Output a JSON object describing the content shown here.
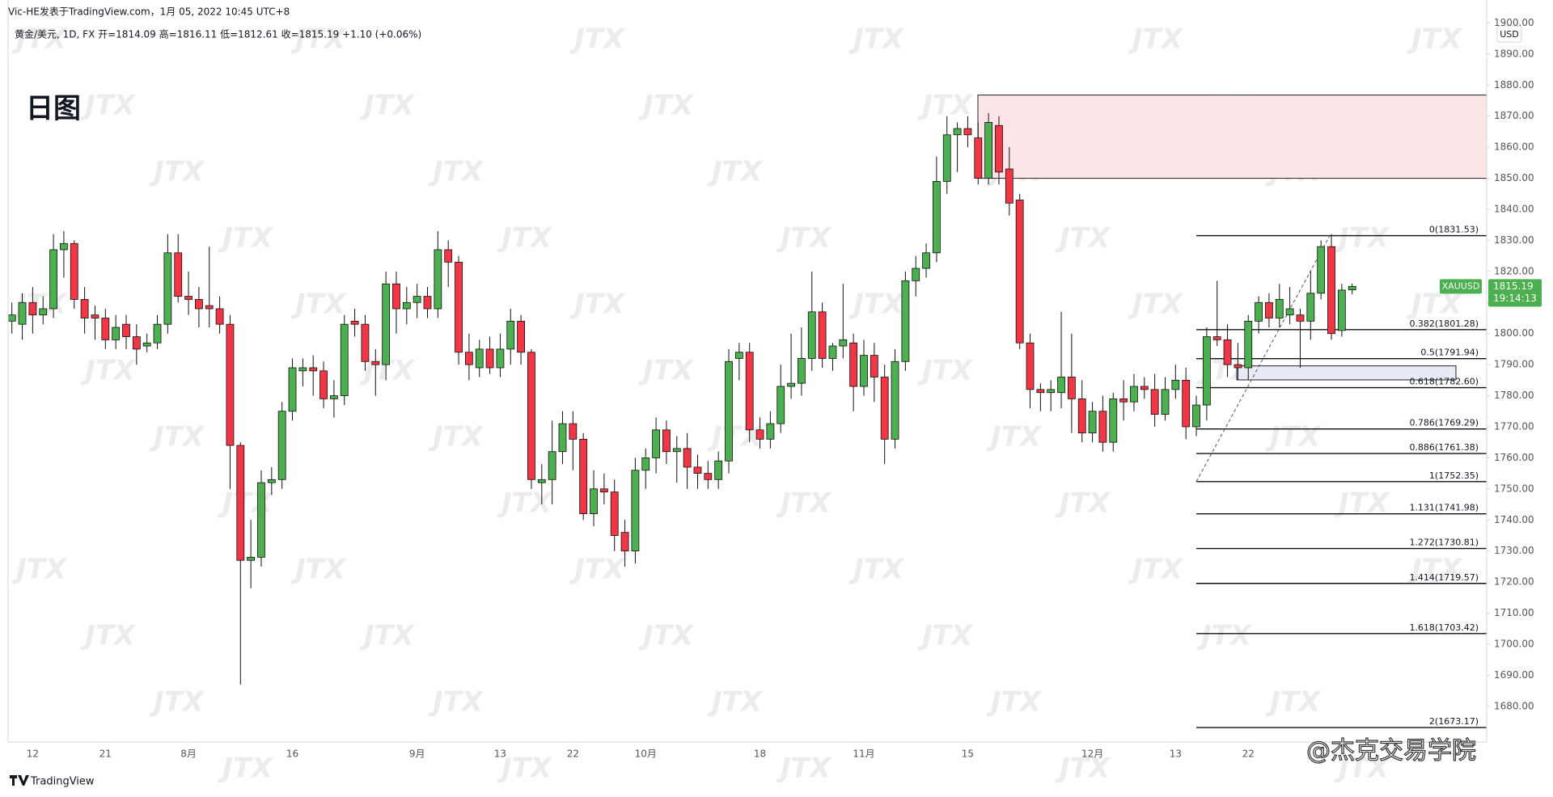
{
  "header": {
    "author_line": "Vic-HE发表于TradingView.com，1月 05, 2022 10:45 UTC+8",
    "symbol_line": "黄金/美元, 1D, FX  开=1814.09  高=1816.11  低=1812.61  收=1815.19  +1.10 (+0.06%)"
  },
  "chart_data": {
    "type": "candlestick",
    "title": "日图",
    "categories": [
      null,
      null,
      "12",
      null,
      null,
      null,
      null,
      null,
      null,
      "21",
      null,
      null,
      null,
      null,
      null,
      null,
      null,
      "8月",
      null,
      null,
      null,
      null,
      null,
      null,
      null,
      null,
      null,
      "16",
      null,
      null,
      null,
      null,
      null,
      null,
      null,
      null,
      null,
      null,
      null,
      "9月",
      null,
      null,
      null,
      null,
      null,
      null,
      null,
      "13",
      null,
      null,
      null,
      null,
      null,
      null,
      "22",
      null,
      null,
      null,
      null,
      null,
      null,
      "10月",
      null,
      null,
      null,
      null,
      null,
      null,
      null,
      null,
      null,
      null,
      "18",
      null,
      null,
      null,
      null,
      null,
      null,
      null,
      null,
      null,
      "11月",
      null,
      null,
      null,
      null,
      null,
      null,
      null,
      null,
      null,
      "15",
      null,
      null,
      null,
      null,
      null,
      null,
      null,
      null,
      null,
      null,
      null,
      "12月",
      null,
      null,
      null,
      null,
      null,
      null,
      null,
      "13",
      null,
      null,
      null,
      null,
      null,
      null,
      "22",
      null,
      null,
      null,
      null,
      null,
      null,
      null,
      null,
      null,
      null
    ],
    "open": [
      1804,
      1803,
      1810,
      1806,
      1808,
      1827,
      1829,
      1811,
      1806,
      1805,
      1798,
      1803,
      1799,
      1796,
      1797,
      1803,
      1826,
      1812,
      1811,
      1809,
      1808,
      1803,
      1764,
      1727,
      1728,
      1752,
      1753,
      1775,
      1788,
      1789,
      1788,
      1779,
      1780,
      1804,
      1803,
      1791,
      1790,
      1816,
      1808,
      1810,
      1812,
      1808,
      1827,
      1823,
      1794,
      1789,
      1795,
      1789,
      1795,
      1804,
      1794,
      1752,
      1753,
      1762,
      1771,
      1766,
      1742,
      1750,
      1749,
      1736,
      1730,
      1756,
      1760,
      1769,
      1762,
      1763,
      1757,
      1755,
      1753,
      1759,
      1792,
      1794,
      1769,
      1766,
      1771,
      1783,
      1784,
      1792,
      1807,
      1792,
      1796,
      1797,
      1783,
      1793,
      1786,
      1766,
      1791,
      1817,
      1821,
      1826,
      1849,
      1864,
      1866,
      1863,
      1850,
      1867,
      1853,
      1843,
      1797,
      1782,
      1781,
      1781,
      1786,
      1779,
      1768,
      1775,
      1765,
      1779,
      1778,
      1783,
      1782,
      1774,
      1782,
      1785,
      1770,
      1777,
      1799,
      1798,
      1790,
      1789,
      1804,
      1810,
      1805,
      1806,
      1806,
      1804,
      1813,
      1828,
      1801,
      1814.09
    ],
    "high": [
      1810,
      1813,
      1815,
      1812,
      1832,
      1833,
      1830,
      1815,
      1809,
      1808,
      1806,
      1806,
      1803,
      1800,
      1806,
      1832,
      1832,
      1820,
      1815,
      1828,
      1812,
      1806,
      1765,
      1740,
      1756,
      1757,
      1778,
      1792,
      1792,
      1793,
      1791,
      1785,
      1806,
      1808,
      1806,
      1795,
      1820,
      1820,
      1815,
      1816,
      1815,
      1833,
      1830,
      1825,
      1800,
      1798,
      1799,
      1800,
      1808,
      1806,
      1795,
      1758,
      1772,
      1775,
      1775,
      1768,
      1756,
      1755,
      1753,
      1740,
      1760,
      1763,
      1773,
      1772,
      1767,
      1768,
      1761,
      1759,
      1762,
      1795,
      1797,
      1797,
      1773,
      1775,
      1790,
      1800,
      1802,
      1820,
      1810,
      1797,
      1816,
      1800,
      1798,
      1797,
      1790,
      1795,
      1820,
      1825,
      1829,
      1857,
      1870,
      1868,
      1870,
      1868,
      1871,
      1870,
      1860,
      1845,
      1800,
      1784,
      1785,
      1807,
      1800,
      1785,
      1778,
      1780,
      1781,
      1785,
      1787,
      1786,
      1787,
      1786,
      1790,
      1789,
      1780,
      1802,
      1817,
      1803,
      1797,
      1806,
      1812,
      1813,
      1816,
      1815,
      1808,
      1820,
      1830,
      1832,
      1816,
      1816.11
    ],
    "low": [
      1800,
      1798,
      1800,
      1803,
      1805,
      1818,
      1808,
      1800,
      1798,
      1795,
      1795,
      1795,
      1790,
      1794,
      1795,
      1800,
      1810,
      1806,
      1802,
      1802,
      1800,
      1750,
      1687,
      1718,
      1725,
      1748,
      1750,
      1772,
      1783,
      1780,
      1776,
      1773,
      1777,
      1799,
      1788,
      1780,
      1785,
      1800,
      1803,
      1805,
      1805,
      1805,
      1815,
      1790,
      1785,
      1786,
      1787,
      1786,
      1790,
      1790,
      1750,
      1745,
      1745,
      1758,
      1756,
      1740,
      1738,
      1745,
      1730,
      1725,
      1726,
      1750,
      1755,
      1758,
      1752,
      1750,
      1750,
      1750,
      1750,
      1755,
      1785,
      1765,
      1763,
      1763,
      1768,
      1779,
      1780,
      1788,
      1789,
      1788,
      1792,
      1775,
      1780,
      1778,
      1758,
      1763,
      1788,
      1812,
      1818,
      1823,
      1845,
      1852,
      1860,
      1848,
      1848,
      1848,
      1838,
      1795,
      1776,
      1775,
      1775,
      1776,
      1768,
      1765,
      1765,
      1762,
      1762,
      1772,
      1775,
      1779,
      1770,
      1772,
      1779,
      1766,
      1767,
      1772,
      1796,
      1786,
      1785,
      1785,
      1800,
      1802,
      1802,
      1803,
      1789,
      1798,
      1811,
      1798,
      1799,
      1812.61
    ],
    "close": [
      1806,
      1810,
      1806,
      1808,
      1827,
      1829,
      1811,
      1805,
      1805,
      1798,
      1802,
      1799,
      1795,
      1797,
      1803,
      1826,
      1812,
      1811,
      1808,
      1808,
      1803,
      1764,
      1727,
      1728,
      1752,
      1753,
      1775,
      1789,
      1789,
      1788,
      1779,
      1780,
      1803,
      1803,
      1791,
      1790,
      1816,
      1808,
      1810,
      1812,
      1808,
      1827,
      1823,
      1794,
      1790,
      1795,
      1789,
      1795,
      1804,
      1794,
      1753,
      1753,
      1762,
      1771,
      1766,
      1742,
      1750,
      1749,
      1735,
      1730,
      1756,
      1760,
      1769,
      1762,
      1763,
      1757,
      1755,
      1753,
      1759,
      1791,
      1794,
      1769,
      1766,
      1771,
      1783,
      1784,
      1792,
      1807,
      1792,
      1796,
      1798,
      1783,
      1793,
      1786,
      1766,
      1791,
      1817,
      1821,
      1826,
      1849,
      1864,
      1866,
      1864,
      1850,
      1868,
      1852,
      1842,
      1797,
      1782,
      1781,
      1782,
      1786,
      1779,
      1768,
      1775,
      1765,
      1779,
      1778,
      1783,
      1782,
      1774,
      1782,
      1785,
      1770,
      1777,
      1799,
      1798,
      1790,
      1789,
      1804,
      1810,
      1805,
      1811,
      1808,
      1804,
      1813,
      1828,
      1800,
      1814,
      1815.19
    ],
    "up_color": "#4caf50",
    "down_color": "#f23645",
    "ylim": [
      1668.5,
      1907.4
    ],
    "yticks": [
      {
        "value": 1680,
        "label": "1680.00"
      },
      {
        "value": 1690,
        "label": "1690.00"
      },
      {
        "value": 1700,
        "label": "1700.00"
      },
      {
        "value": 1710,
        "label": "1710.00"
      },
      {
        "value": 1720,
        "label": "1720.00"
      },
      {
        "value": 1730,
        "label": "1730.00"
      },
      {
        "value": 1740,
        "label": "1740.00"
      },
      {
        "value": 1750,
        "label": "1750.00"
      },
      {
        "value": 1760,
        "label": "1760.00"
      },
      {
        "value": 1770,
        "label": "1770.00"
      },
      {
        "value": 1780,
        "label": "1780.00"
      },
      {
        "value": 1790,
        "label": "1790.00"
      },
      {
        "value": 1800,
        "label": "1800.00"
      },
      {
        "value": 1810,
        "label": "1810.00"
      },
      {
        "value": 1820,
        "label": "1820.00"
      },
      {
        "value": 1830,
        "label": "1830.00"
      },
      {
        "value": 1840,
        "label": "1840.00"
      },
      {
        "value": 1850,
        "label": "1850.00"
      },
      {
        "value": 1860,
        "label": "1860.00"
      },
      {
        "value": 1870,
        "label": "1870.00"
      },
      {
        "value": 1880,
        "label": "1880.00"
      },
      {
        "value": 1890,
        "label": "1890.00"
      },
      {
        "value": 1900,
        "label": "1900.00"
      }
    ],
    "currency": "USD",
    "grid": false,
    "zones": [
      {
        "top": 1876.8,
        "bottom": 1850,
        "color": "#fde4e6"
      },
      {
        "top": 1789.6,
        "bottom": 1785.1,
        "color": "#e8eaf6"
      }
    ],
    "fib_levels": [
      {
        "label": "0(1831.53)",
        "value": 1831.53
      },
      {
        "label": "0.382(1801.28)",
        "value": 1801.28
      },
      {
        "label": "0.5(1791.94)",
        "value": 1791.94
      },
      {
        "label": "0.618(1782.60)",
        "value": 1782.6
      },
      {
        "label": "0.786(1769.29)",
        "value": 1769.29
      },
      {
        "label": "0.886(1761.38)",
        "value": 1761.38
      },
      {
        "label": "1(1752.35)",
        "value": 1752.35
      },
      {
        "label": "1.131(1741.98)",
        "value": 1741.98
      },
      {
        "label": "1.272(1730.81)",
        "value": 1730.81
      },
      {
        "label": "1.414(1719.57)",
        "value": 1719.57
      },
      {
        "label": "1.618(1703.42)",
        "value": 1703.42
      },
      {
        "label": "2(1673.17)",
        "value": 1673.17
      }
    ],
    "last_price": {
      "symbol": "XAUUSD",
      "value": 1815.19,
      "countdown": "19:14:13",
      "color": "#4caf50"
    }
  },
  "watermark": "JTX",
  "credit": "@杰克交易学院",
  "footer": "TradingView"
}
